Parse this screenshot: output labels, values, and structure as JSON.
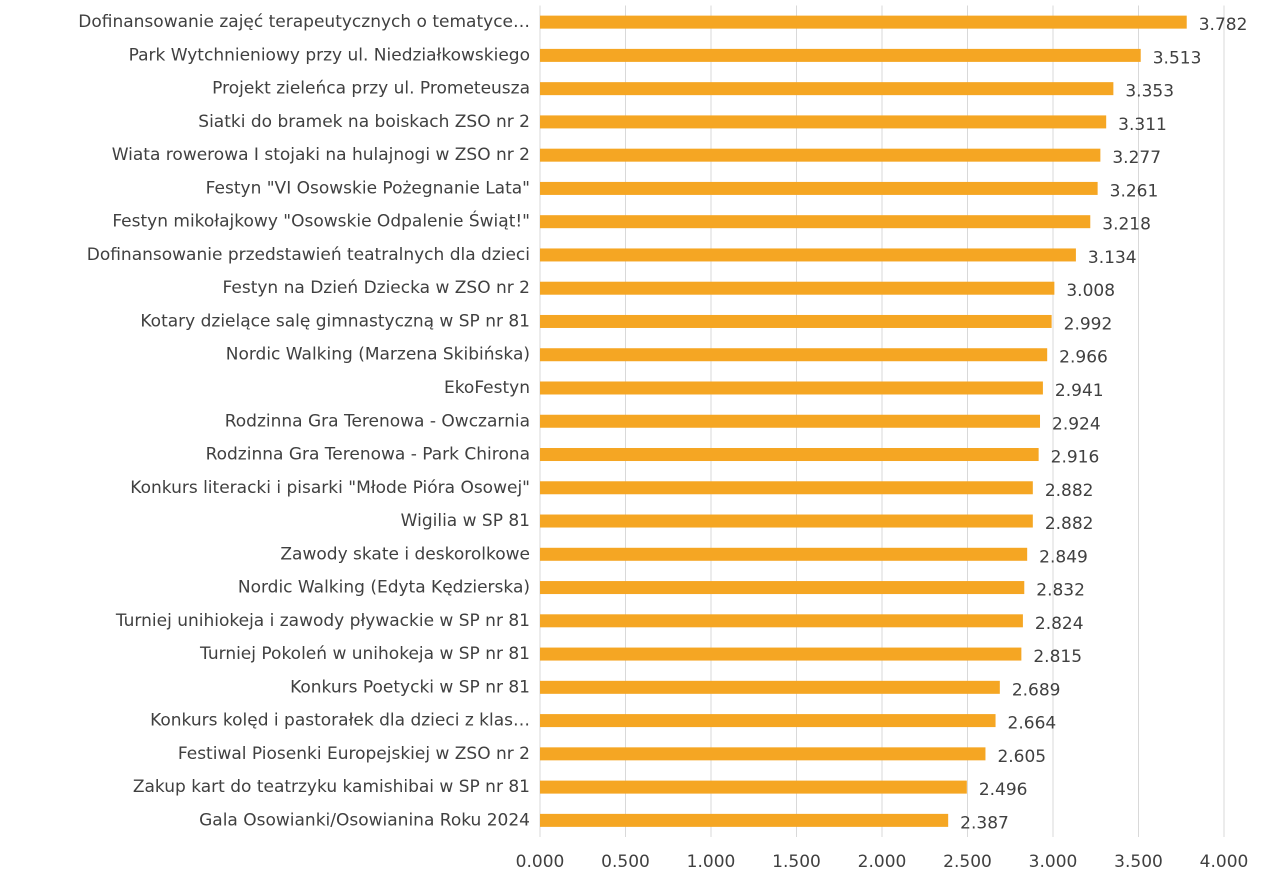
{
  "chart_data": {
    "type": "bar",
    "orientation": "horizontal",
    "categories": [
      "Dofinansowanie zajęć terapeutycznych o tematyce…",
      "Park Wytchnieniowy przy ul. Niedziałkowskiego",
      "Projekt zieleńca przy ul. Prometeusza",
      "Siatki do bramek na boiskach ZSO nr 2",
      "Wiata rowerowa I stojaki na hulajnogi w ZSO nr 2",
      "Festyn \"VI Osowskie Pożegnanie Lata\"",
      "Festyn mikołajkowy \"Osowskie Odpalenie Świąt!\"",
      "Dofinansowanie przedstawień teatralnych dla dzieci",
      "Festyn na Dzień Dziecka w ZSO nr 2",
      "Kotary dzielące salę gimnastyczną w SP nr 81",
      "Nordic Walking (Marzena Skibińska)",
      "EkoFestyn",
      "Rodzinna Gra Terenowa - Owczarnia",
      "Rodzinna Gra Terenowa - Park Chirona",
      "Konkurs literacki i pisarki \"Młode Pióra Osowej\"",
      "Wigilia w SP 81",
      "Zawody skate i deskorolkowe",
      "Nordic Walking (Edyta Kędzierska)",
      "Turniej unihiokeja i zawody pływackie w SP nr 81",
      "Turniej Pokoleń w unihokeja w SP nr 81",
      "Konkurs Poetycki w SP nr 81",
      "Konkurs kolęd i pastorałek dla dzieci z klas…",
      "Festiwal Piosenki Europejskiej w ZSO nr 2",
      "Zakup kart do teatrzyku kamishibai w SP nr 81",
      "Gala Osowianki/Osowianina Roku 2024"
    ],
    "values": [
      3.782,
      3.513,
      3.353,
      3.311,
      3.277,
      3.261,
      3.218,
      3.134,
      3.008,
      2.992,
      2.966,
      2.941,
      2.924,
      2.916,
      2.882,
      2.882,
      2.849,
      2.832,
      2.824,
      2.815,
      2.689,
      2.664,
      2.605,
      2.496,
      2.387
    ],
    "color": "#f5a623",
    "xlim": [
      0,
      4
    ],
    "xticks": [
      {
        "value": 0,
        "label": "0.000"
      },
      {
        "value": 0.5,
        "label": "0.500"
      },
      {
        "value": 1,
        "label": "1.000"
      },
      {
        "value": 1.5,
        "label": "1.500"
      },
      {
        "value": 2,
        "label": "2.000"
      },
      {
        "value": 2.5,
        "label": "2.500"
      },
      {
        "value": 3,
        "label": "3.000"
      },
      {
        "value": 3.5,
        "label": "3.500"
      },
      {
        "value": 4,
        "label": "4.000"
      }
    ],
    "grid": true
  }
}
